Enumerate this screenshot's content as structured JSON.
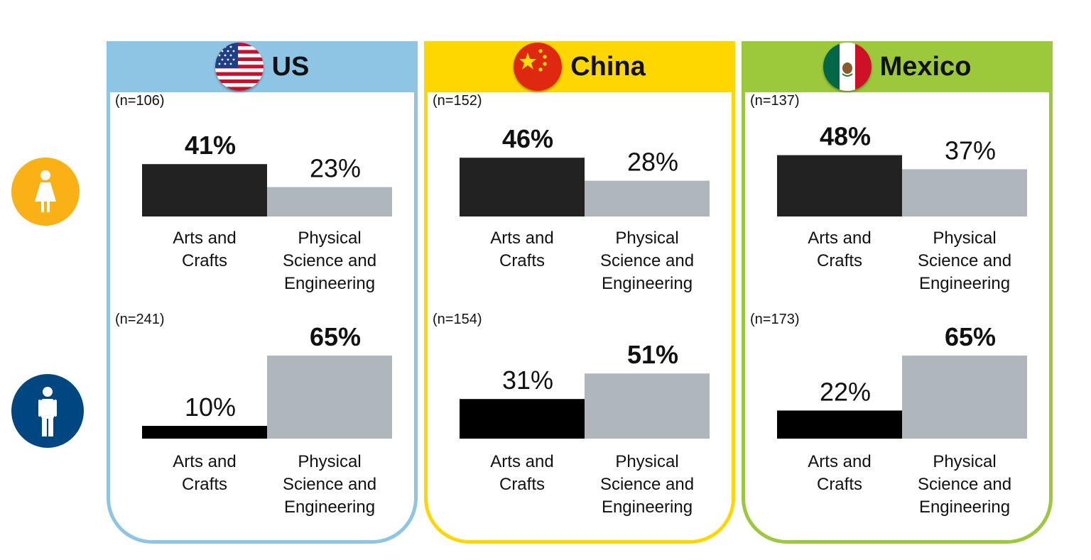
{
  "colors": {
    "arts": "#222222",
    "arts_male": "#000000",
    "physical": "#b0b7bc",
    "female_icon": "#f9b115",
    "male_icon": "#004782"
  },
  "icons": {
    "female": "woman-icon",
    "male": "man-icon"
  },
  "categories": [
    "Arts and Crafts",
    "Physical Science and Engineering"
  ],
  "countries": [
    {
      "name": "US",
      "color": "#8ec5e5",
      "flag": "us-flag-icon"
    },
    {
      "name": "China",
      "color": "#ffd700",
      "flag": "china-flag-icon"
    },
    {
      "name": "Mexico",
      "color": "#9bc93b",
      "flag": "mexico-flag-icon"
    }
  ],
  "chart_data": {
    "type": "bar",
    "categories": [
      "Arts and Crafts",
      "Physical Science and Engineering"
    ],
    "value_format": "percent",
    "ylim": [
      0,
      100
    ],
    "panels": [
      {
        "country": "US",
        "group": "female",
        "n": "(n=106)",
        "values": [
          41,
          23
        ],
        "labels": [
          "41%",
          "23%"
        ],
        "bold": [
          true,
          false
        ]
      },
      {
        "country": "US",
        "group": "male",
        "n": "(n=241)",
        "values": [
          10,
          65
        ],
        "labels": [
          "10%",
          "65%"
        ],
        "bold": [
          false,
          true
        ]
      },
      {
        "country": "China",
        "group": "female",
        "n": "(n=152)",
        "values": [
          46,
          28
        ],
        "labels": [
          "46%",
          "28%"
        ],
        "bold": [
          true,
          false
        ]
      },
      {
        "country": "China",
        "group": "male",
        "n": "(n=154)",
        "values": [
          31,
          51
        ],
        "labels": [
          "31%",
          "51%"
        ],
        "bold": [
          false,
          true
        ]
      },
      {
        "country": "Mexico",
        "group": "female",
        "n": "(n=137)",
        "values": [
          48,
          37
        ],
        "labels": [
          "48%",
          "37%"
        ],
        "bold": [
          true,
          false
        ]
      },
      {
        "country": "Mexico",
        "group": "male",
        "n": "(n=173)",
        "values": [
          22,
          65
        ],
        "labels": [
          "22%",
          "65%"
        ],
        "bold": [
          false,
          true
        ]
      }
    ]
  }
}
